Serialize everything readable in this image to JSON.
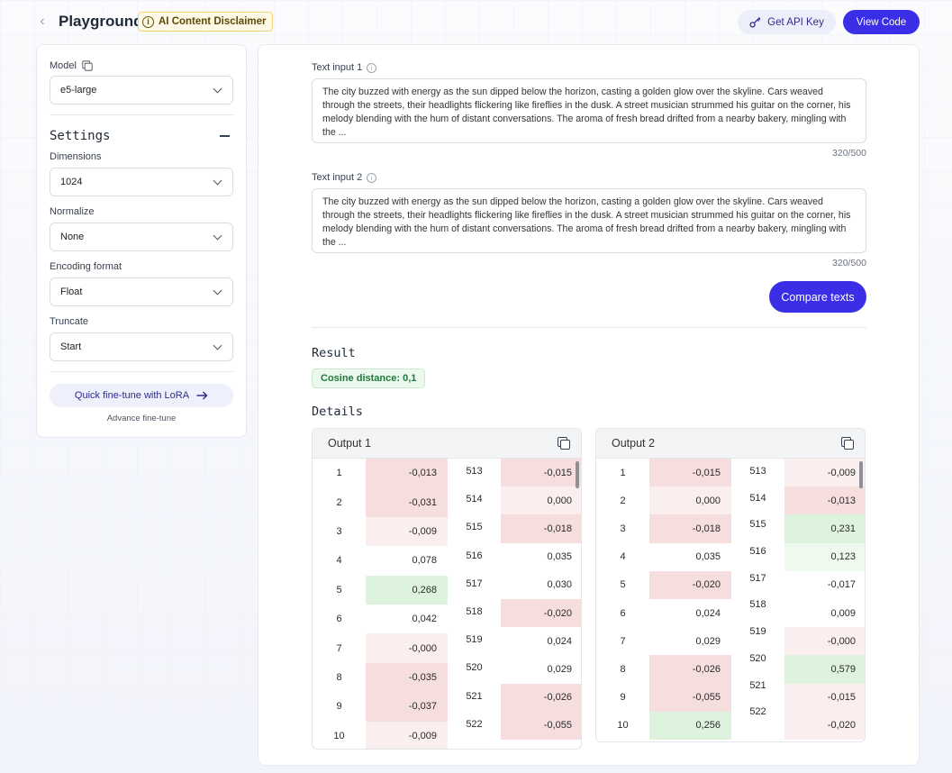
{
  "header": {
    "title": "Playground",
    "disclaimer": "AI Content Disclaimer",
    "api_key_label": "Get API Key",
    "view_code_label": "View Code"
  },
  "sidebar": {
    "model_label": "Model",
    "model_value": "e5-large",
    "settings_title": "Settings",
    "dimensions_label": "Dimensions",
    "dimensions_value": "1024",
    "normalize_label": "Normalize",
    "normalize_value": "None",
    "encoding_label": "Encoding format",
    "encoding_value": "Float",
    "truncate_label": "Truncate",
    "truncate_value": "Start",
    "lora_label": "Quick fine-tune with LoRA",
    "advance_label": "Advance fine-tune"
  },
  "main": {
    "input1_label": "Text input 1",
    "input1_text": "The city buzzed with energy as the sun dipped below the horizon, casting a golden glow over the skyline. Cars weaved through the streets, their headlights flickering like fireflies in the dusk. A street musician strummed his guitar on the corner, his melody blending with the hum of distant conversations. The aroma of fresh bread drifted from a nearby bakery, mingling with the ...",
    "input1_counter": "320/500",
    "input2_label": "Text input 2",
    "input2_text": "The city buzzed with energy as the sun dipped below the horizon, casting a golden glow over the skyline. Cars weaved through the streets, their headlights flickering like fireflies in the dusk. A street musician strummed his guitar on the corner, his melody blending with the hum of distant conversations. The aroma of fresh bread drifted from a nearby bakery, mingling with the ...",
    "input2_counter": "320/500",
    "compare_label": "Compare texts",
    "result_title": "Result",
    "cosine_label": "Cosine distance: 0,1",
    "details_title": "Details"
  },
  "colors": {
    "accent": "#3a2ee6",
    "neg": "#f6dede",
    "neg_light": "#faeeee",
    "pos": "#ddf3de",
    "pos_light": "#effaef",
    "neutral": "#ffffff"
  },
  "outputs": [
    {
      "title": "Output 1",
      "left": [
        {
          "i": "1",
          "v": "-0,013",
          "tone": "neg"
        },
        {
          "i": "2",
          "v": "-0,031",
          "tone": "neg"
        },
        {
          "i": "3",
          "v": "-0,009",
          "tone": "neg_light"
        },
        {
          "i": "4",
          "v": "0,078",
          "tone": "neutral"
        },
        {
          "i": "5",
          "v": "0,268",
          "tone": "pos"
        },
        {
          "i": "6",
          "v": "0,042",
          "tone": "neutral"
        },
        {
          "i": "7",
          "v": "-0,000",
          "tone": "neg_light"
        },
        {
          "i": "8",
          "v": "-0,035",
          "tone": "neg"
        },
        {
          "i": "9",
          "v": "-0,037",
          "tone": "neg"
        },
        {
          "i": "10",
          "v": "-0,009",
          "tone": "neg_light"
        }
      ],
      "right": [
        {
          "i": "513",
          "v": "-0,015",
          "tone": "neg"
        },
        {
          "i": "514",
          "v": "0,000",
          "tone": "neg_light"
        },
        {
          "i": "515",
          "v": "-0,018",
          "tone": "neg"
        },
        {
          "i": "516",
          "v": "0,035",
          "tone": "neutral"
        },
        {
          "i": "517",
          "v": "0,030",
          "tone": "neutral"
        },
        {
          "i": "518",
          "v": "-0,020",
          "tone": "neg"
        },
        {
          "i": "519",
          "v": "0,024",
          "tone": "neutral"
        },
        {
          "i": "520",
          "v": "0,029",
          "tone": "neutral"
        },
        {
          "i": "521",
          "v": "-0,026",
          "tone": "neg"
        },
        {
          "i": "522",
          "v": "-0,055",
          "tone": "neg"
        }
      ]
    },
    {
      "title": "Output 2",
      "left": [
        {
          "i": "1",
          "v": "-0,015",
          "tone": "neg"
        },
        {
          "i": "2",
          "v": "0,000",
          "tone": "neg_light"
        },
        {
          "i": "3",
          "v": "-0,018",
          "tone": "neg"
        },
        {
          "i": "4",
          "v": "0,035",
          "tone": "neutral"
        },
        {
          "i": "5",
          "v": "-0,020",
          "tone": "neg"
        },
        {
          "i": "6",
          "v": "0,024",
          "tone": "neutral"
        },
        {
          "i": "7",
          "v": "0,029",
          "tone": "neutral"
        },
        {
          "i": "8",
          "v": "-0,026",
          "tone": "neg"
        },
        {
          "i": "9",
          "v": "-0,055",
          "tone": "neg"
        },
        {
          "i": "10",
          "v": "0,256",
          "tone": "pos"
        }
      ],
      "right": [
        {
          "i": "513",
          "v": "-0,009",
          "tone": "neg_light"
        },
        {
          "i": "514",
          "v": "-0,013",
          "tone": "neg"
        },
        {
          "i": "515",
          "v": "0,231",
          "tone": "pos"
        },
        {
          "i": "516",
          "v": "0,123",
          "tone": "pos_light"
        },
        {
          "i": "517",
          "v": "-0,017",
          "tone": "neutral"
        },
        {
          "i": "518",
          "v": "0,009",
          "tone": "neutral"
        },
        {
          "i": "519",
          "v": "-0,000",
          "tone": "neg_light"
        },
        {
          "i": "520",
          "v": "0,579",
          "tone": "pos"
        },
        {
          "i": "521",
          "v": "-0,015",
          "tone": "neg_light"
        },
        {
          "i": "522",
          "v": "-0,020",
          "tone": "neg_light"
        }
      ]
    }
  ]
}
